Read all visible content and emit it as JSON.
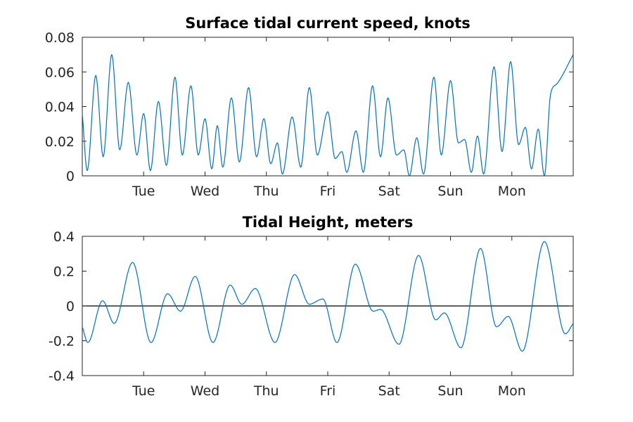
{
  "chart_data": [
    {
      "type": "line",
      "title": "Surface tidal current speed, knots",
      "xlabel": "",
      "ylabel": "",
      "xlim": [
        0,
        8
      ],
      "ylim": [
        0,
        0.08
      ],
      "yticks": [
        0,
        0.02,
        0.04,
        0.06,
        0.08
      ],
      "ytick_labels": [
        "0",
        "0.02",
        "0.04",
        "0.06",
        "0.08"
      ],
      "xticks": [
        1,
        2,
        3,
        4,
        5,
        6,
        7
      ],
      "xtick_labels": [
        "Tue",
        "Wed",
        "Thu",
        "Fri",
        "Sat",
        "Sun",
        "Mon"
      ],
      "grid": false,
      "line_color": "#0072BD",
      "series": [
        {
          "points": [
            [
              0,
              0.036
            ],
            [
              0.08,
              0.003
            ],
            [
              0.22,
              0.058
            ],
            [
              0.34,
              0.011
            ],
            [
              0.48,
              0.07
            ],
            [
              0.61,
              0.015
            ],
            [
              0.75,
              0.054
            ],
            [
              0.89,
              0.012
            ],
            [
              1.0,
              0.036
            ],
            [
              1.11,
              0.003
            ],
            [
              1.24,
              0.043
            ],
            [
              1.37,
              0.006
            ],
            [
              1.51,
              0.057
            ],
            [
              1.63,
              0.012
            ],
            [
              1.77,
              0.052
            ],
            [
              1.89,
              0.012
            ],
            [
              2.0,
              0.033
            ],
            [
              2.11,
              0.004
            ],
            [
              2.2,
              0.029
            ],
            [
              2.29,
              0.005
            ],
            [
              2.43,
              0.045
            ],
            [
              2.56,
              0.008
            ],
            [
              2.71,
              0.051
            ],
            [
              2.84,
              0.011
            ],
            [
              2.96,
              0.033
            ],
            [
              3.07,
              0.007
            ],
            [
              3.18,
              0.019
            ],
            [
              3.26,
              0.001
            ],
            [
              3.42,
              0.034
            ],
            [
              3.56,
              0.005
            ],
            [
              3.7,
              0.051
            ],
            [
              3.83,
              0.012
            ],
            [
              4.0,
              0.037
            ],
            [
              4.12,
              0.01
            ],
            [
              4.23,
              0.014
            ],
            [
              4.31,
              0.002
            ],
            [
              4.46,
              0.026
            ],
            [
              4.58,
              0.002
            ],
            [
              4.73,
              0.052
            ],
            [
              4.86,
              0.011
            ],
            [
              4.98,
              0.045
            ],
            [
              5.12,
              0.012
            ],
            [
              5.24,
              0.015
            ],
            [
              5.33,
              0.0
            ],
            [
              5.45,
              0.022
            ],
            [
              5.56,
              0.001
            ],
            [
              5.73,
              0.057
            ],
            [
              5.85,
              0.012
            ],
            [
              6.0,
              0.055
            ],
            [
              6.13,
              0.019
            ],
            [
              6.23,
              0.021
            ],
            [
              6.34,
              0.002
            ],
            [
              6.44,
              0.023
            ],
            [
              6.54,
              0.001
            ],
            [
              6.71,
              0.063
            ],
            [
              6.84,
              0.014
            ],
            [
              6.98,
              0.066
            ],
            [
              7.11,
              0.018
            ],
            [
              7.22,
              0.028
            ],
            [
              7.32,
              0.004
            ],
            [
              7.43,
              0.027
            ],
            [
              7.53,
              0.0
            ],
            [
              7.63,
              0.047
            ],
            [
              7.73,
              0.053
            ],
            [
              8.0,
              0.07
            ]
          ]
        }
      ]
    },
    {
      "type": "line",
      "title": "Tidal Height, meters",
      "xlabel": "",
      "ylabel": "",
      "xlim": [
        0,
        8
      ],
      "ylim": [
        -0.4,
        0.4
      ],
      "yticks": [
        -0.4,
        -0.2,
        0,
        0.2,
        0.4
      ],
      "ytick_labels": [
        "-0.4",
        "-0.2",
        "0",
        "0.2",
        "0.4"
      ],
      "xticks": [
        1,
        2,
        3,
        4,
        5,
        6,
        7
      ],
      "xtick_labels": [
        "Tue",
        "Wed",
        "Thu",
        "Fri",
        "Sat",
        "Sun",
        "Mon"
      ],
      "grid": false,
      "zero_line": true,
      "line_color": "#0072BD",
      "series": [
        {
          "points": [
            [
              0,
              -0.12
            ],
            [
              0.09,
              -0.21
            ],
            [
              0.33,
              0.03
            ],
            [
              0.52,
              -0.1
            ],
            [
              0.82,
              0.25
            ],
            [
              1.12,
              -0.21
            ],
            [
              1.39,
              0.07
            ],
            [
              1.6,
              -0.03
            ],
            [
              1.84,
              0.17
            ],
            [
              2.13,
              -0.21
            ],
            [
              2.41,
              0.12
            ],
            [
              2.6,
              0.01
            ],
            [
              2.82,
              0.1
            ],
            [
              3.14,
              -0.21
            ],
            [
              3.46,
              0.18
            ],
            [
              3.7,
              0.01
            ],
            [
              3.92,
              0.04
            ],
            [
              4.15,
              -0.21
            ],
            [
              4.45,
              0.24
            ],
            [
              4.74,
              -0.03
            ],
            [
              4.86,
              -0.02
            ],
            [
              5.16,
              -0.22
            ],
            [
              5.48,
              0.29
            ],
            [
              5.76,
              -0.08
            ],
            [
              5.9,
              -0.04
            ],
            [
              6.17,
              -0.24
            ],
            [
              6.49,
              0.33
            ],
            [
              6.75,
              -0.12
            ],
            [
              6.94,
              -0.06
            ],
            [
              7.17,
              -0.26
            ],
            [
              7.53,
              0.37
            ],
            [
              7.87,
              -0.16
            ],
            [
              8.0,
              -0.1
            ]
          ]
        }
      ]
    }
  ]
}
